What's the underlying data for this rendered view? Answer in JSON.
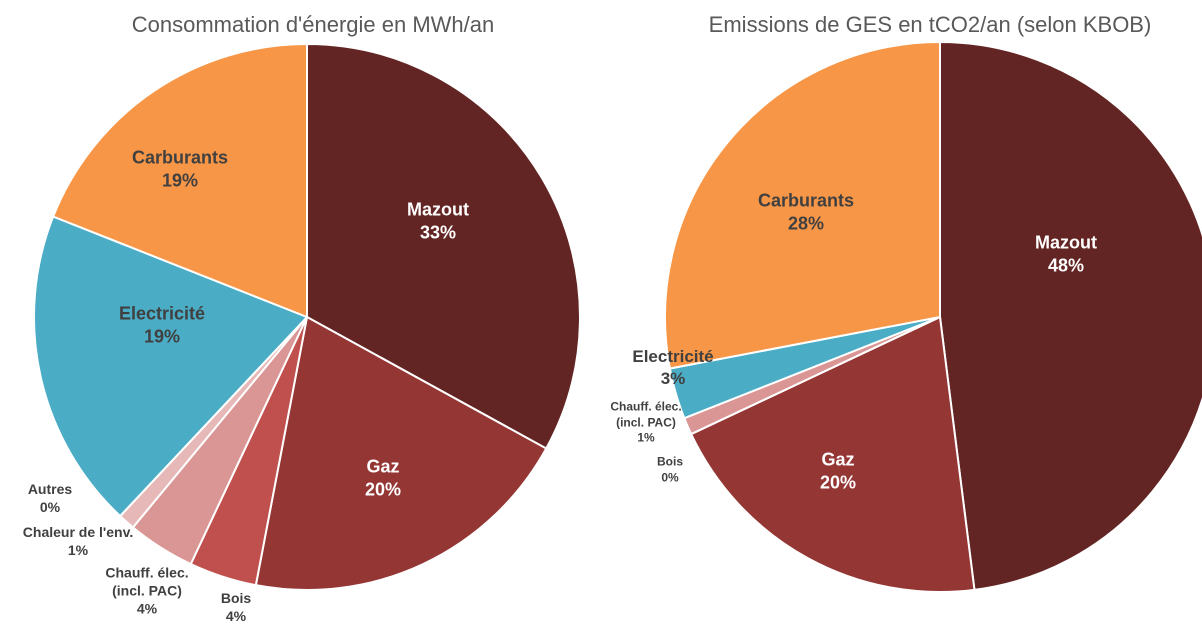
{
  "chart_data": [
    {
      "type": "pie",
      "title": "Consommation d'énergie en MWh/an",
      "categories": [
        "Mazout",
        "Gaz",
        "Bois",
        "Chauff. élec.\n(incl. PAC)",
        "Chaleur de l'env.",
        "Autres",
        "Electricité",
        "Carburants"
      ],
      "values": [
        33,
        20,
        4,
        4,
        1,
        0,
        19,
        19
      ],
      "value_labels": [
        "33%",
        "20%",
        "4%",
        "4%",
        "1%",
        "0%",
        "19%",
        "19%"
      ],
      "colors": [
        "#632523",
        "#943634",
        "#c0504d",
        "#d99694",
        "#e6b9b8",
        "#f2dcdb",
        "#4bacc6",
        "#f79646"
      ]
    },
    {
      "type": "pie",
      "title": "Emissions de GES en tCO2/an (selon KBOB)",
      "categories": [
        "Mazout",
        "Gaz",
        "Bois",
        "Chauff. élec.\n(incl. PAC)",
        "Electricité",
        "Carburants"
      ],
      "values": [
        48,
        20,
        0,
        1,
        3,
        28
      ],
      "value_labels": [
        "48%",
        "20%",
        "0%",
        "1%",
        "3%",
        "28%"
      ],
      "colors": [
        "#632523",
        "#943634",
        "#c0504d",
        "#d99694",
        "#4bacc6",
        "#f79646"
      ]
    }
  ]
}
